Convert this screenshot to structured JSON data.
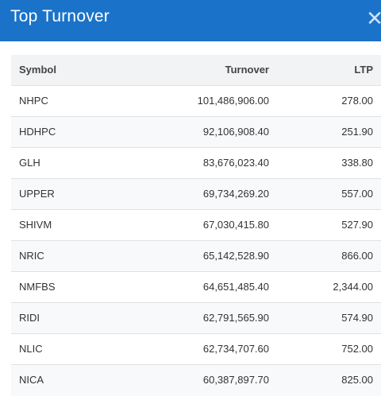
{
  "header": {
    "title": "Top Turnover",
    "close_glyph": "✕"
  },
  "table": {
    "columns": [
      "Symbol",
      "Turnover",
      "LTP"
    ],
    "rows": [
      {
        "symbol": "NHPC",
        "turnover": "101,486,906.00",
        "ltp": "278.00"
      },
      {
        "symbol": "HDHPC",
        "turnover": "92,106,908.40",
        "ltp": "251.90"
      },
      {
        "symbol": "GLH",
        "turnover": "83,676,023.40",
        "ltp": "338.80"
      },
      {
        "symbol": "UPPER",
        "turnover": "69,734,269.20",
        "ltp": "557.00"
      },
      {
        "symbol": "SHIVM",
        "turnover": "67,030,415.80",
        "ltp": "527.90"
      },
      {
        "symbol": "NRIC",
        "turnover": "65,142,528.90",
        "ltp": "866.00"
      },
      {
        "symbol": "NMFBS",
        "turnover": "64,651,485.40",
        "ltp": "2,344.00"
      },
      {
        "symbol": "RIDI",
        "turnover": "62,791,565.90",
        "ltp": "574.90"
      },
      {
        "symbol": "NLIC",
        "turnover": "62,734,707.60",
        "ltp": "752.00"
      },
      {
        "symbol": "NICA",
        "turnover": "60,387,897.70",
        "ltp": "825.00"
      }
    ]
  },
  "colors": {
    "header_bg": "#1a73c9",
    "header_text": "#ffffff",
    "table_head_bg": "#f1f3f5",
    "stripe_bg": "#f8f9fa"
  }
}
